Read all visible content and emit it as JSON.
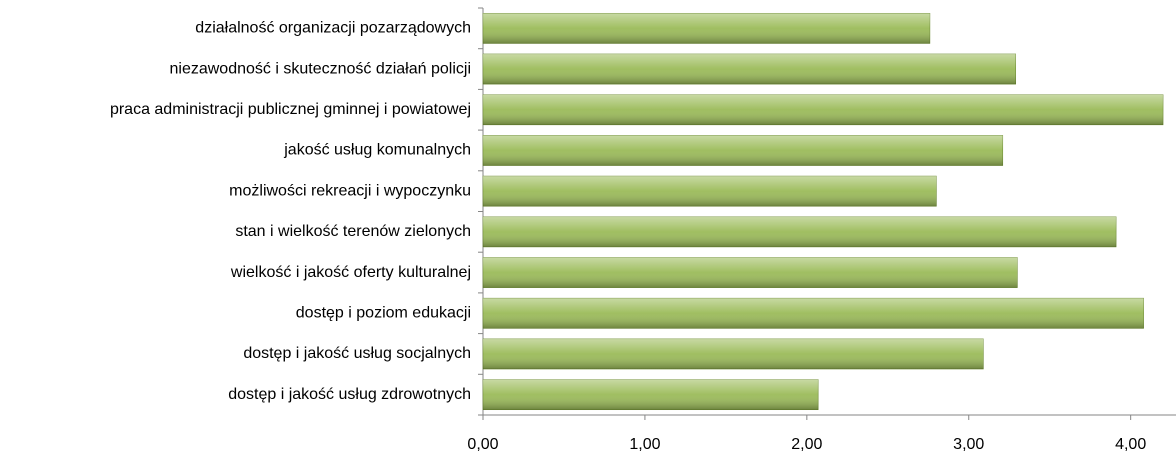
{
  "chart_data": {
    "type": "bar",
    "orientation": "horizontal",
    "categories": [
      "działalność organizacji pozarządowych",
      "niezawodność i skuteczność działań policji",
      "praca administracji publicznej gminnej i powiatowej",
      "jakość usług komunalnych",
      "możliwości rekreacji i wypoczynku",
      "stan i wielkość terenów zielonych",
      "wielkość i jakość oferty kulturalnej",
      "dostęp i poziom edukacji",
      "dostęp i jakość usług socjalnych",
      "dostęp i jakość usług zdrowotnych"
    ],
    "values": [
      2.76,
      3.29,
      4.2,
      3.21,
      2.8,
      3.91,
      3.3,
      4.08,
      3.09,
      2.07
    ],
    "color": "#9bbb59",
    "xlim": [
      0,
      4.28
    ],
    "xticks": [
      {
        "value": 0,
        "label": "0,00"
      },
      {
        "value": 1,
        "label": "1,00"
      },
      {
        "value": 2,
        "label": "2,00"
      },
      {
        "value": 3,
        "label": "3,00"
      },
      {
        "value": 4,
        "label": "4,00"
      }
    ]
  }
}
